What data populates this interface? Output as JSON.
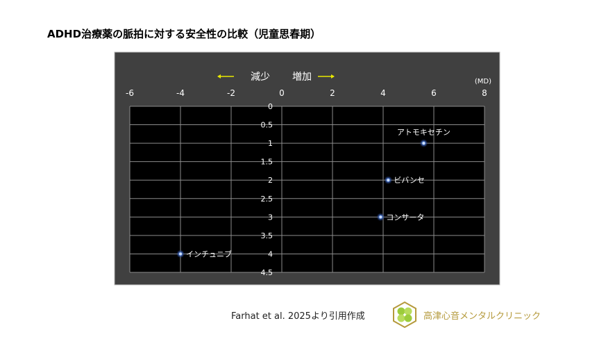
{
  "title": "ADHD治療薬の脈拍に対する安全性の比較（児童思春期）",
  "chart_data": {
    "type": "scatter",
    "title": "",
    "xlabel": "",
    "ylabel": "",
    "x_unit": "(MD)",
    "direction_labels": {
      "decrease": "減少",
      "increase": "増加"
    },
    "xlim": [
      -6,
      8
    ],
    "ylim": [
      0,
      4.5
    ],
    "y_inverted": true,
    "x_ticks": [
      -6,
      -4,
      -2,
      0,
      2,
      4,
      6,
      8
    ],
    "y_ticks": [
      0,
      0.5,
      1,
      1.5,
      2,
      2.5,
      3,
      3.5,
      4,
      4.5
    ],
    "grid": true,
    "points": [
      {
        "label": "アトモキセチン",
        "x": 5.6,
        "y": 1
      },
      {
        "label": "ビバンセ",
        "x": 4.2,
        "y": 2
      },
      {
        "label": "コンサータ",
        "x": 3.9,
        "y": 3
      },
      {
        "label": "インチュニブ",
        "x": -4.0,
        "y": 4
      }
    ],
    "colors": {
      "panel": "#404040",
      "plot": "#000000",
      "grid": "#8c8c8c",
      "point": "#4a78d0",
      "arrow": "#e8e800",
      "text": "#ffffff"
    }
  },
  "footer": {
    "source": "Farhat et al. 2025より引用作成",
    "clinic_name": "高津心音メンタルクリニック",
    "clinic_color": "#b59a3c"
  }
}
